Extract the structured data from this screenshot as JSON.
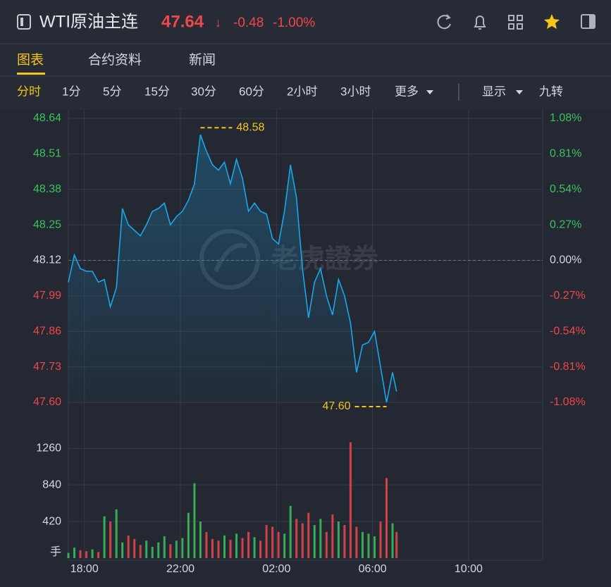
{
  "header": {
    "title": "WTI原油主连",
    "price": "47.64",
    "arrow": "↓",
    "change": "-0.48",
    "change_pct": "-1.00%"
  },
  "tabs": {
    "items": [
      "图表",
      "合约资料",
      "新闻"
    ],
    "active": 0
  },
  "periods": {
    "items": [
      "分时",
      "1分",
      "5分",
      "15分",
      "30分",
      "60分",
      "2小时",
      "3小时",
      "更多"
    ],
    "active": 0
  },
  "tools": [
    "显示",
    "九转"
  ],
  "watermark": "老虎證券",
  "chart_data": [
    {
      "type": "line",
      "color": "#1aa7e8",
      "up_color": "#3cc35a",
      "down_color": "#f0474b",
      "grid": true,
      "x": [
        "17:20",
        "17:35",
        "17:50",
        "18:05",
        "18:20",
        "18:35",
        "18:50",
        "19:05",
        "19:20",
        "19:35",
        "19:50",
        "20:05",
        "20:20",
        "20:35",
        "20:50",
        "21:05",
        "21:20",
        "21:35",
        "21:50",
        "22:05",
        "22:20",
        "22:35",
        "22:50",
        "23:05",
        "23:20",
        "23:35",
        "23:50",
        "00:05",
        "00:20",
        "00:35",
        "00:50",
        "01:05",
        "01:20",
        "01:35",
        "01:50",
        "02:05",
        "02:20",
        "02:35",
        "02:50",
        "03:05",
        "03:20",
        "03:35",
        "03:50",
        "04:05",
        "04:20",
        "04:35",
        "04:50",
        "05:05",
        "05:20",
        "05:35",
        "05:50",
        "06:05",
        "06:20",
        "06:35",
        "06:50",
        "07:00"
      ],
      "values": [
        48.04,
        48.14,
        48.09,
        48.08,
        48.08,
        48.04,
        48.05,
        47.95,
        48.02,
        48.31,
        48.25,
        48.23,
        48.21,
        48.25,
        48.3,
        48.31,
        48.33,
        48.25,
        48.28,
        48.3,
        48.34,
        48.4,
        48.58,
        48.52,
        48.47,
        48.45,
        48.48,
        48.4,
        48.49,
        48.42,
        48.3,
        48.33,
        48.3,
        48.29,
        48.2,
        48.18,
        48.3,
        48.47,
        48.35,
        48.09,
        47.91,
        48.04,
        48.09,
        47.99,
        47.92,
        48.05,
        47.99,
        47.89,
        47.71,
        47.81,
        47.82,
        47.86,
        47.73,
        47.6,
        47.71,
        47.64
      ],
      "prev_close": 48.12,
      "markers": [
        {
          "x": "22:50",
          "value": 48.58
        },
        {
          "x": "06:35",
          "value": 47.6,
          "value_label": "47.60"
        }
      ],
      "xlim": [
        "17:20",
        "13:05"
      ],
      "xticks": [
        "18:00",
        "22:00",
        "02:00",
        "06:00",
        "10:00"
      ],
      "ylim": [
        47.6,
        48.64
      ],
      "yticks": [
        48.64,
        48.51,
        48.38,
        48.25,
        48.12,
        47.99,
        47.86,
        47.73,
        {
          "value": 47.6,
          "label": "47.60"
        }
      ],
      "y2lim": [
        -1.08,
        1.08
      ],
      "y2ticks": [
        {
          "value": 1.08,
          "label": "1.08%"
        },
        {
          "value": 0.81,
          "label": "0.81%"
        },
        {
          "value": 0.54,
          "label": "0.54%"
        },
        {
          "value": 0.27,
          "label": "0.27%"
        },
        {
          "value": 0,
          "label": "0.00%"
        },
        {
          "value": -0.27,
          "label": "-0.27%"
        },
        {
          "value": -0.54,
          "label": "-0.54%"
        },
        {
          "value": -0.81,
          "label": "-0.81%"
        },
        {
          "value": -1.08,
          "label": "-1.08%"
        }
      ]
    },
    {
      "type": "bar",
      "ylabel": "手",
      "up_color": "#3cc35a",
      "down_color": "#f0474b",
      "grid": true,
      "x": [
        "17:20",
        "17:35",
        "17:50",
        "18:05",
        "18:20",
        "18:35",
        "18:50",
        "19:05",
        "19:20",
        "19:35",
        "19:50",
        "20:05",
        "20:20",
        "20:35",
        "20:50",
        "21:05",
        "21:20",
        "21:35",
        "21:50",
        "22:05",
        "22:20",
        "22:35",
        "22:50",
        "23:05",
        "23:20",
        "23:35",
        "23:50",
        "00:05",
        "00:20",
        "00:35",
        "00:50",
        "01:05",
        "01:20",
        "01:35",
        "01:50",
        "02:05",
        "02:20",
        "02:35",
        "02:50",
        "03:05",
        "03:20",
        "03:35",
        "03:50",
        "04:05",
        "04:20",
        "04:35",
        "04:50",
        "05:05",
        "05:20",
        "05:35",
        "05:50",
        "06:05",
        "06:20",
        "06:35",
        "06:50",
        "07:00"
      ],
      "values": [
        60,
        120,
        90,
        80,
        100,
        70,
        480,
        420,
        560,
        180,
        260,
        220,
        150,
        200,
        130,
        180,
        250,
        160,
        200,
        230,
        520,
        860,
        420,
        300,
        220,
        200,
        260,
        210,
        280,
        230,
        300,
        240,
        200,
        380,
        360,
        300,
        280,
        600,
        450,
        400,
        520,
        380,
        450,
        300,
        500,
        420,
        380,
        1330,
        360,
        300,
        280,
        250,
        420,
        920,
        400,
        300
      ],
      "xlim": [
        "17:20",
        "13:05"
      ],
      "xticks": [
        "18:00",
        "22:00",
        "02:00",
        "06:00",
        "10:00"
      ],
      "ylim": [
        0,
        1440
      ],
      "yticks": [
        420,
        840,
        1260
      ]
    }
  ]
}
